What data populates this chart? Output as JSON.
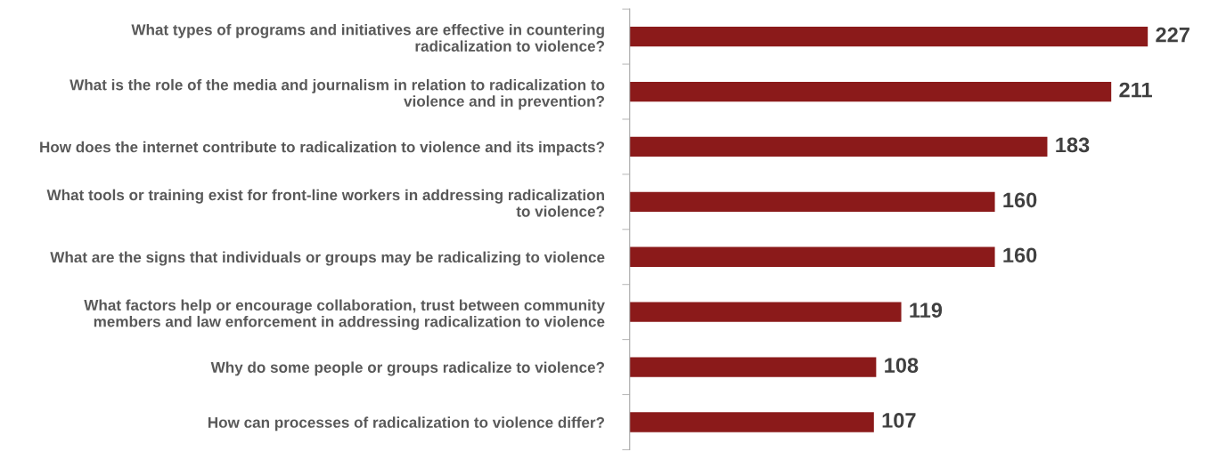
{
  "chart_data": {
    "type": "bar",
    "orientation": "horizontal",
    "categories": [
      "What types of programs and initiatives are effective in countering\nradicalization to violence?",
      "What is the role of the media and journalism in relation to radicalization to\nviolence and in prevention?",
      "How does the internet contribute to radicalization to violence and its impacts?",
      "What tools or training exist for front-line workers in addressing radicalization\nto violence?",
      "What are the signs that individuals or groups may be radicalizing to violence",
      "What factors help or encourage collaboration, trust between community\nmembers and law enforcement in addressing radicalization to violence",
      "Why do some people or groups radicalize to violence?",
      "How can processes of radicalization to violence differ?"
    ],
    "values": [
      227,
      211,
      183,
      160,
      160,
      119,
      108,
      107
    ],
    "color": "#8b1a1a",
    "data_labels": true,
    "tick_labels": "y",
    "grid": false
  }
}
